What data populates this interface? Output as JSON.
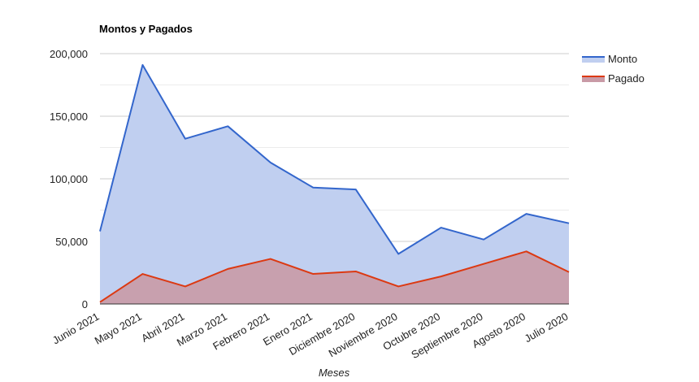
{
  "chart_data": {
    "type": "area",
    "title": "Montos y Pagados",
    "xlabel": "Meses",
    "ylabel": "",
    "categories": [
      "Junio 2021",
      "Mayo 2021",
      "Abril 2021",
      "Marzo 2021",
      "Febrero 2021",
      "Enero 2021",
      "Diciembre 2020",
      "Noviembre 2020",
      "Octubre 2020",
      "Septiembre 2020",
      "Agosto 2020",
      "Julio 2020"
    ],
    "series": [
      {
        "name": "Monto",
        "color": "#3366cc",
        "fill": "#c0cff0",
        "values": [
          58000,
          191000,
          132000,
          142000,
          113000,
          93000,
          91500,
          40000,
          61000,
          51500,
          72000,
          64500
        ]
      },
      {
        "name": "Pagado",
        "color": "#dc3912",
        "fill": "#c99aa6",
        "values": [
          1500,
          24000,
          14000,
          28000,
          36000,
          24000,
          26000,
          14000,
          22000,
          32000,
          42000,
          25500
        ]
      }
    ],
    "ylim": [
      0,
      200000
    ],
    "yticks": [
      {
        "value": 0,
        "label": "0"
      },
      {
        "value": 50000,
        "label": "50,000"
      },
      {
        "value": 100000,
        "label": "100,000"
      },
      {
        "value": 150000,
        "label": "150,000"
      },
      {
        "value": 200000,
        "label": "200,000"
      }
    ],
    "minor_grid": [
      25000,
      75000,
      125000,
      175000
    ],
    "grid": true,
    "legend_position": "right"
  }
}
